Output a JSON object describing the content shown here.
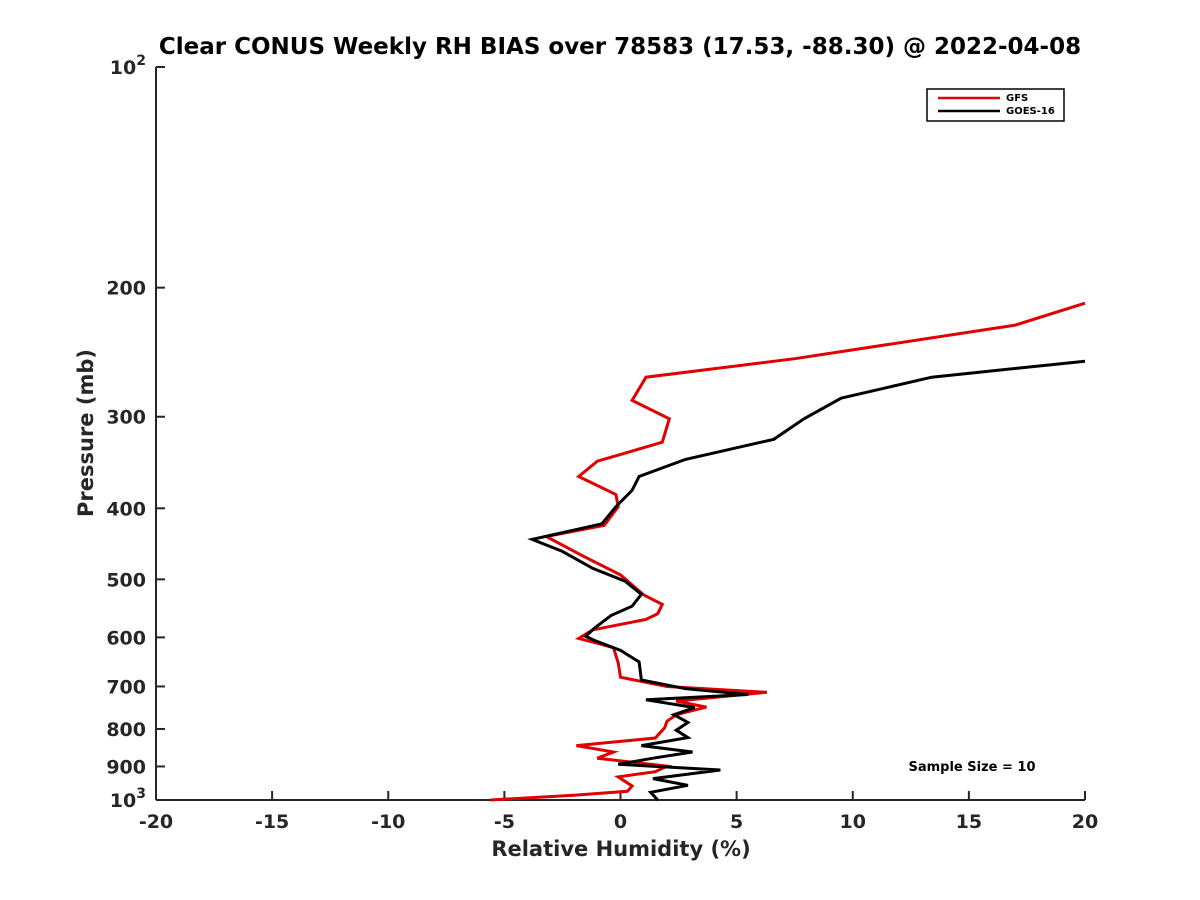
{
  "chart_data": {
    "type": "line",
    "title": "Clear CONUS Weekly RH BIAS over 78583 (17.53, -88.30) @ 2022-04-08",
    "xlabel": "Relative Humidity (%)",
    "ylabel": "Pressure (mb)",
    "xlim": [
      -20,
      20
    ],
    "ylim": [
      100,
      1000
    ],
    "y_scale": "log",
    "y_direction": "reversed",
    "x_ticks": [
      "-20",
      "-15",
      "-10",
      "-5",
      "0",
      "5",
      "10",
      "15",
      "20"
    ],
    "x_tick_values": [
      -20,
      -15,
      -10,
      -5,
      0,
      5,
      10,
      15,
      20
    ],
    "y_ticks": [
      {
        "value": 100,
        "base": "10",
        "exp": "2"
      },
      {
        "value": 200,
        "label": "200"
      },
      {
        "value": 300,
        "label": "300"
      },
      {
        "value": 400,
        "label": "400"
      },
      {
        "value": 500,
        "label": "500"
      },
      {
        "value": 600,
        "label": "600"
      },
      {
        "value": 700,
        "label": "700"
      },
      {
        "value": 800,
        "label": "800"
      },
      {
        "value": 900,
        "label": "900"
      },
      {
        "value": 1000,
        "base": "10",
        "exp": "3"
      }
    ],
    "grid": false,
    "legend_position": "top-right",
    "annotation": "Sample Size = 10",
    "series": [
      {
        "name": "GFS",
        "color": "#e00000",
        "points": [
          [
            20.0,
            210
          ],
          [
            17.0,
            225
          ],
          [
            7.5,
            250
          ],
          [
            1.1,
            265
          ],
          [
            0.5,
            285
          ],
          [
            2.1,
            302
          ],
          [
            1.8,
            325
          ],
          [
            -1.0,
            345
          ],
          [
            -1.8,
            362
          ],
          [
            -0.2,
            383
          ],
          [
            -0.1,
            398
          ],
          [
            -0.7,
            422
          ],
          [
            -3.2,
            437
          ],
          [
            -1.6,
            465
          ],
          [
            0.0,
            493
          ],
          [
            1.0,
            525
          ],
          [
            1.8,
            541
          ],
          [
            1.6,
            557
          ],
          [
            1.1,
            567
          ],
          [
            -1.2,
            586
          ],
          [
            -1.8,
            602
          ],
          [
            -1.0,
            611
          ],
          [
            -0.3,
            620
          ],
          [
            -0.1,
            650
          ],
          [
            0.0,
            680
          ],
          [
            2.0,
            700
          ],
          [
            6.3,
            713
          ],
          [
            2.4,
            733
          ],
          [
            3.7,
            747
          ],
          [
            2.4,
            765
          ],
          [
            2.0,
            781
          ],
          [
            1.9,
            797
          ],
          [
            1.5,
            823
          ],
          [
            -1.9,
            843
          ],
          [
            -0.3,
            860
          ],
          [
            -1.0,
            877
          ],
          [
            2.0,
            899
          ],
          [
            1.5,
            915
          ],
          [
            -0.1,
            930
          ],
          [
            0.5,
            957
          ],
          [
            0.3,
            973
          ],
          [
            -2.0,
            985
          ],
          [
            -5.6,
            1000
          ]
        ]
      },
      {
        "name": "GOES-16",
        "color": "#000000",
        "points": [
          [
            20.0,
            252
          ],
          [
            13.4,
            265
          ],
          [
            9.5,
            283
          ],
          [
            7.9,
            302
          ],
          [
            6.6,
            322
          ],
          [
            2.8,
            343
          ],
          [
            0.8,
            362
          ],
          [
            0.5,
            378
          ],
          [
            -0.2,
            398
          ],
          [
            -0.8,
            420
          ],
          [
            -3.8,
            441
          ],
          [
            -2.5,
            458
          ],
          [
            -1.2,
            483
          ],
          [
            0.2,
            503
          ],
          [
            0.9,
            524
          ],
          [
            0.5,
            544
          ],
          [
            -0.4,
            560
          ],
          [
            -1.1,
            582
          ],
          [
            -1.5,
            598
          ],
          [
            -1.1,
            606
          ],
          [
            0.0,
            625
          ],
          [
            0.8,
            648
          ],
          [
            0.9,
            686
          ],
          [
            2.8,
            705
          ],
          [
            5.5,
            718
          ],
          [
            1.1,
            730
          ],
          [
            3.2,
            748
          ],
          [
            2.3,
            765
          ],
          [
            2.9,
            784
          ],
          [
            2.4,
            803
          ],
          [
            2.9,
            822
          ],
          [
            0.9,
            843
          ],
          [
            3.1,
            860
          ],
          [
            1.4,
            877
          ],
          [
            -0.1,
            894
          ],
          [
            4.3,
            910
          ],
          [
            1.4,
            935
          ],
          [
            2.9,
            955
          ],
          [
            1.3,
            976
          ],
          [
            1.6,
            1000
          ]
        ]
      }
    ]
  }
}
